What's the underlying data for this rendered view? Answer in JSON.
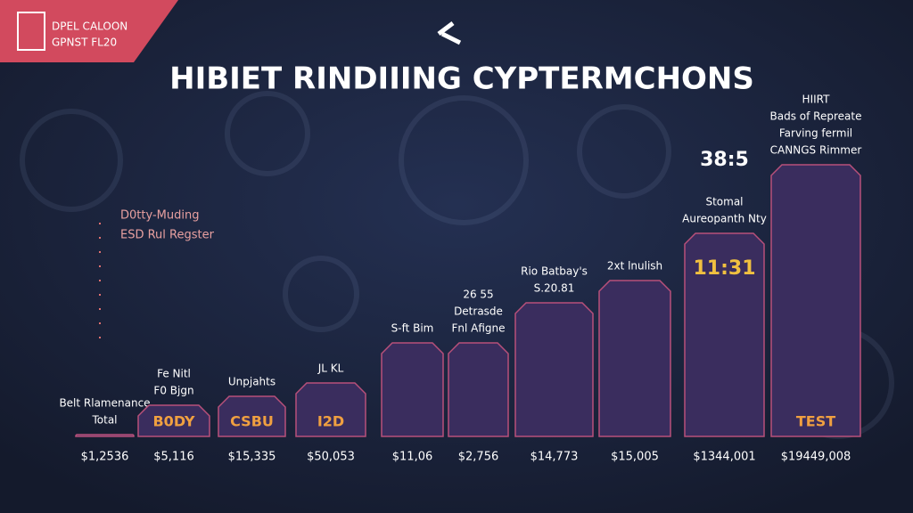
{
  "chart_data": {
    "type": "bar",
    "brand": [
      "DPEL CALOON",
      "GPNST FL20"
    ],
    "title": "HIBIET RINDIIING CYPTERMCHONS",
    "legend_notes": [
      "D0tty-Muding",
      "ESD Rul Regster"
    ],
    "categories": [
      "$1,2536",
      "$5,116",
      "$15,335",
      "$50,053",
      "$11,06",
      "$2,756",
      "$14,773",
      "$15,005",
      "$1344,001",
      "$19449,008"
    ],
    "values": [
      2,
      35,
      45,
      60,
      105,
      105,
      150,
      175,
      228,
      305
    ],
    "ylim": [
      0,
      320
    ],
    "annotations": [
      [
        "Belt Rlamenance",
        "Total"
      ],
      [
        "Fe Nitl",
        "F0 Bjgn"
      ],
      [
        "Unpjahts"
      ],
      [
        "JL KL"
      ],
      [
        "S-ft Bim"
      ],
      [
        "26 55",
        "Detrasde",
        "Fnl Afigne"
      ],
      [
        "Rio Batbay's",
        "S.20.81"
      ],
      [
        "2xt lnulish"
      ],
      [
        "38:5",
        "Stomal",
        "Aureopanth Nty"
      ],
      [
        "HIIRT",
        "Bads of Repreate",
        "Farving fermil",
        "CANNGS Rimmer"
      ]
    ],
    "inner_labels": [
      null,
      "B0DY",
      "CSBU",
      "I2D",
      null,
      null,
      null,
      null,
      "11:31",
      "TEST"
    ],
    "color": "#3a2d5e",
    "edge_color": "#b8507a"
  }
}
